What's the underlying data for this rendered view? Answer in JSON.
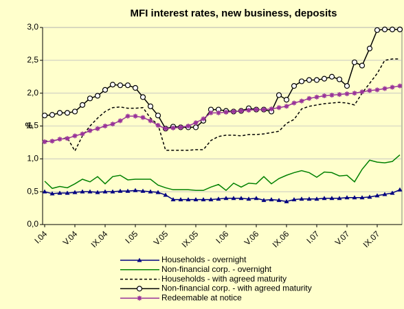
{
  "chart_data": {
    "type": "line",
    "title": "MFI interest rates, new business, deposits",
    "ylabel": "%",
    "categories": [
      "I.04",
      null,
      null,
      null,
      "V.04",
      null,
      null,
      null,
      "IX.04",
      null,
      null,
      null,
      "I.05",
      null,
      null,
      null,
      "V.05",
      null,
      null,
      null,
      "IX.05",
      null,
      null,
      null,
      "I.06",
      null,
      null,
      null,
      "V.06",
      null,
      null,
      null,
      "IX.06",
      null,
      null,
      null,
      "I.07",
      null,
      null,
      null,
      "V.07",
      null,
      null,
      null,
      "IX.07",
      null,
      null,
      null
    ],
    "ylim": [
      0,
      3
    ],
    "yticks": [
      {
        "value": 0,
        "label": "0,0"
      },
      {
        "value": 0.5,
        "label": "0,5"
      },
      {
        "value": 1,
        "label": "1,0"
      },
      {
        "value": 1.5,
        "label": "1,5"
      },
      {
        "value": 2,
        "label": "2,0"
      },
      {
        "value": 2.5,
        "label": "2,5"
      },
      {
        "value": 3,
        "label": "3,0"
      }
    ],
    "grid": true,
    "series": [
      {
        "name": "Households - overnight",
        "color": "#000080",
        "marker": "triangle",
        "line_style": "solid",
        "values": [
          0.5,
          0.47,
          0.48,
          0.48,
          0.49,
          0.5,
          0.5,
          0.49,
          0.5,
          0.5,
          0.51,
          0.51,
          0.52,
          0.51,
          0.5,
          0.49,
          0.45,
          0.38,
          0.38,
          0.38,
          0.38,
          0.38,
          0.38,
          0.39,
          0.4,
          0.4,
          0.4,
          0.39,
          0.4,
          0.37,
          0.38,
          0.37,
          0.35,
          0.38,
          0.39,
          0.39,
          0.39,
          0.4,
          0.4,
          0.4,
          0.41,
          0.41,
          0.41,
          0.42,
          0.44,
          0.46,
          0.48,
          0.53
        ]
      },
      {
        "name": "Non-financial corp. - overnight",
        "color": "#008000",
        "marker": "none",
        "line_style": "solid",
        "values": [
          0.66,
          0.55,
          0.58,
          0.56,
          0.62,
          0.69,
          0.65,
          0.73,
          0.62,
          0.73,
          0.75,
          0.68,
          0.69,
          0.69,
          0.69,
          0.6,
          0.56,
          0.53,
          0.53,
          0.53,
          0.52,
          0.52,
          0.57,
          0.61,
          0.52,
          0.63,
          0.57,
          0.63,
          0.62,
          0.73,
          0.62,
          0.7,
          0.75,
          0.79,
          0.82,
          0.79,
          0.72,
          0.8,
          0.79,
          0.74,
          0.75,
          0.65,
          0.84,
          0.98,
          0.95,
          0.94,
          0.96,
          1.06
        ]
      },
      {
        "name": "Households - with agreed maturity",
        "color": "#000000",
        "marker": "none",
        "line_style": "dashed",
        "values": [
          1.27,
          1.27,
          1.3,
          1.32,
          1.12,
          1.35,
          1.5,
          1.62,
          1.72,
          1.78,
          1.79,
          1.77,
          1.77,
          1.78,
          1.62,
          1.52,
          1.13,
          1.13,
          1.13,
          1.13,
          1.14,
          1.14,
          1.28,
          1.34,
          1.36,
          1.36,
          1.35,
          1.37,
          1.37,
          1.38,
          1.4,
          1.42,
          1.54,
          1.6,
          1.76,
          1.8,
          1.82,
          1.84,
          1.85,
          1.86,
          1.85,
          1.82,
          2.0,
          2.15,
          2.3,
          2.5,
          2.52,
          2.52
        ]
      },
      {
        "name": "Non-financial corp. - with agreed maturity",
        "color": "#000000",
        "marker": "circle",
        "line_style": "solid",
        "values": [
          1.66,
          1.67,
          1.7,
          1.7,
          1.72,
          1.82,
          1.92,
          1.96,
          2.05,
          2.13,
          2.12,
          2.12,
          2.08,
          1.94,
          1.8,
          1.66,
          1.46,
          1.49,
          1.48,
          1.48,
          1.48,
          1.58,
          1.75,
          1.75,
          1.73,
          1.72,
          1.73,
          1.77,
          1.75,
          1.75,
          1.72,
          1.97,
          1.9,
          2.11,
          2.18,
          2.2,
          2.2,
          2.22,
          2.25,
          2.21,
          2.11,
          2.47,
          2.42,
          2.68,
          2.96,
          2.97,
          2.97,
          2.97
        ]
      },
      {
        "name": "Redeemable at notice",
        "color": "#993399",
        "marker": "star",
        "line_style": "solid",
        "values": [
          1.26,
          1.27,
          1.3,
          1.31,
          1.35,
          1.38,
          1.43,
          1.46,
          1.5,
          1.53,
          1.58,
          1.65,
          1.65,
          1.63,
          1.58,
          1.51,
          1.46,
          1.47,
          1.48,
          1.5,
          1.55,
          1.61,
          1.7,
          1.7,
          1.71,
          1.72,
          1.73,
          1.74,
          1.75,
          1.75,
          1.76,
          1.78,
          1.8,
          1.85,
          1.88,
          1.92,
          1.94,
          1.96,
          1.97,
          1.98,
          1.99,
          2.0,
          2.02,
          2.04,
          2.05,
          2.07,
          2.09,
          2.11
        ]
      }
    ]
  }
}
